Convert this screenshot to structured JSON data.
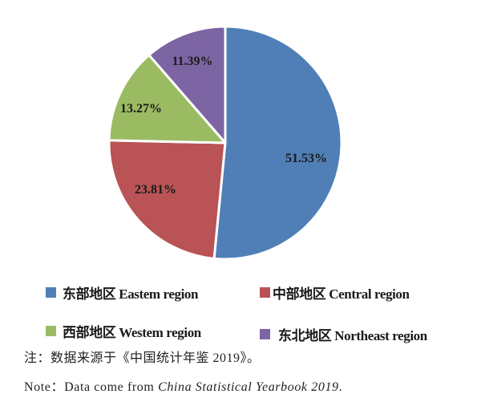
{
  "chart_data": {
    "type": "pie",
    "title": "",
    "categories": [
      "东部地区 Eastem region",
      "中部地区 Central region",
      "西部地区 Westem region",
      "东北地区 Northeast region"
    ],
    "values": [
      51.53,
      23.81,
      13.27,
      11.39
    ],
    "labels": [
      "51.53%",
      "23.81%",
      "13.27%",
      "11.39%"
    ],
    "colors": [
      "#4f7fb6",
      "#b95355",
      "#9bbb62",
      "#7c65a2"
    ],
    "start_angle": "12 o'clock, clockwise",
    "legend_position": "bottom"
  },
  "legend": [
    {
      "label": "东部地区 Eastem region",
      "color": "#4f7fb6"
    },
    {
      "label": "中部地区 Central region",
      "color": "#b95355"
    },
    {
      "label": "西部地区 Westem region",
      "color": "#9bbb62"
    },
    {
      "label": "东北地区 Northeast region",
      "color": "#7c65a2"
    }
  ],
  "notes": {
    "zh": "注：数据来源于《中国统计年鉴 2019》。",
    "en_prefix": "Note：Data come from ",
    "en_title": "China Statistical Yearbook 2019",
    "en_suffix": "."
  }
}
